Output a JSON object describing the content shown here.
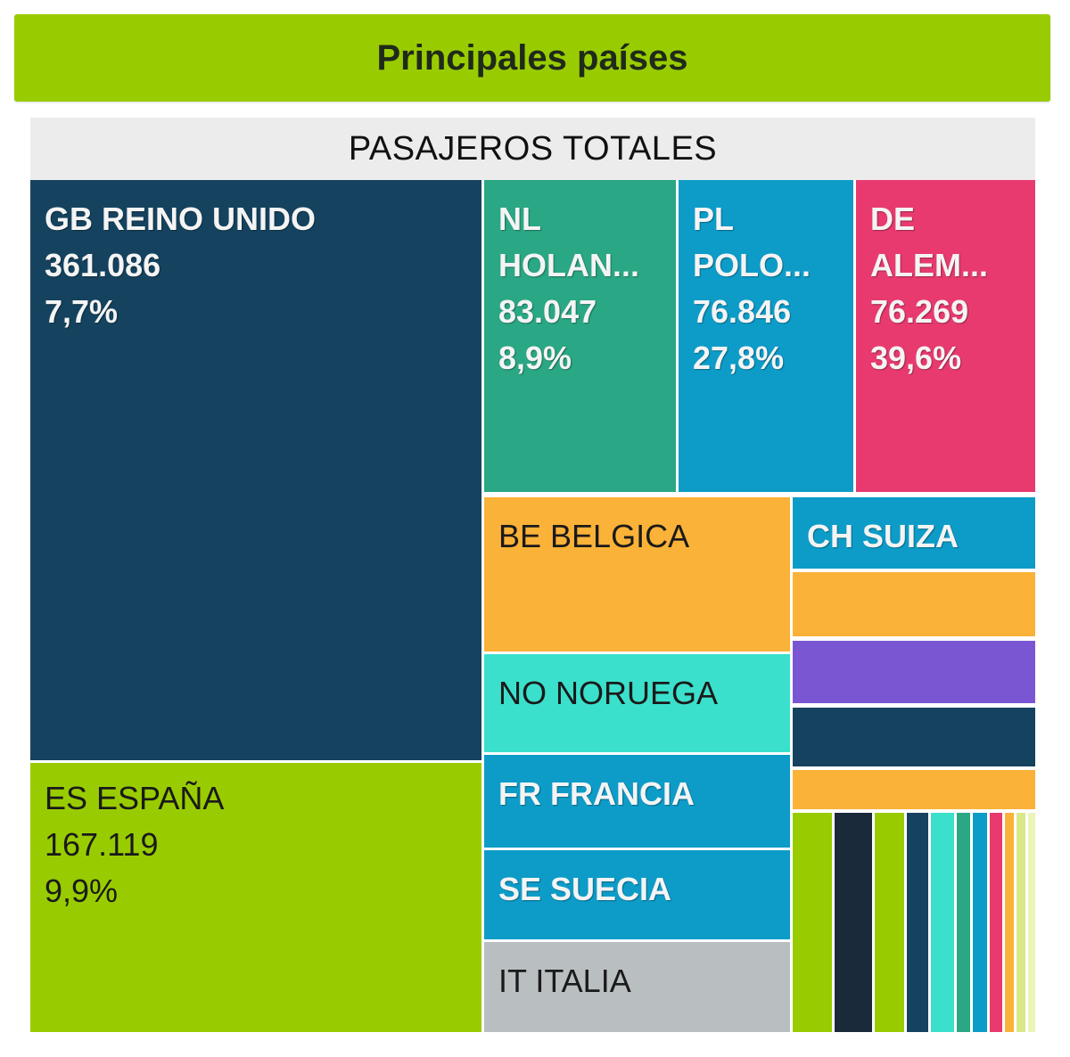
{
  "header": {
    "title": "Principales países"
  },
  "chart_data": {
    "type": "treemap",
    "title": "PASAJEROS TOTALES",
    "colors": {
      "dark_blue": "#15435f",
      "lime": "#99cc00",
      "teal": "#2aa784",
      "blue": "#0d9cc8",
      "pink": "#e83a6e",
      "orange": "#fbb238",
      "turquoise": "#3be0cc",
      "gray": "#b9bec1",
      "purple": "#7b56d3",
      "navy": "#1a2a3a"
    },
    "items": [
      {
        "code": "GB",
        "name": "REINO UNIDO",
        "lines": [
          "GB REINO UNIDO"
        ],
        "value": 361086,
        "value_label": "361.086",
        "pct_label": "7,7%",
        "color": "#15435f",
        "text": "light"
      },
      {
        "code": "ES",
        "name": "ESPAÑA",
        "lines": [
          "ES ESPAÑA"
        ],
        "value": 167119,
        "value_label": "167.119",
        "pct_label": "9,9%",
        "color": "#99cc00",
        "text": "dark"
      },
      {
        "code": "NL",
        "name": "HOLANDA",
        "lines": [
          "NL",
          "HOLAN..."
        ],
        "value": 83047,
        "value_label": "83.047",
        "pct_label": "8,9%",
        "color": "#2aa784",
        "text": "light"
      },
      {
        "code": "PL",
        "name": "POLONIA",
        "lines": [
          "PL",
          "POLO..."
        ],
        "value": 76846,
        "value_label": "76.846",
        "pct_label": "27,8%",
        "color": "#0d9cc8",
        "text": "light"
      },
      {
        "code": "DE",
        "name": "ALEMANIA",
        "lines": [
          "DE",
          "ALEM..."
        ],
        "value": 76269,
        "value_label": "76.269",
        "pct_label": "39,6%",
        "color": "#e83a6e",
        "text": "light"
      },
      {
        "code": "BE",
        "name": "BELGICA",
        "lines": [
          "BE BELGICA"
        ],
        "color": "#fbb238",
        "text": "dark"
      },
      {
        "code": "NO",
        "name": "NORUEGA",
        "lines": [
          "NO NORUEGA"
        ],
        "color": "#3be0cc",
        "text": "dark"
      },
      {
        "code": "FR",
        "name": "FRANCIA",
        "lines": [
          "FR FRANCIA"
        ],
        "color": "#0d9cc8",
        "text": "light"
      },
      {
        "code": "SE",
        "name": "SUECIA",
        "lines": [
          "SE SUECIA"
        ],
        "color": "#0d9cc8",
        "text": "light"
      },
      {
        "code": "IT",
        "name": "ITALIA",
        "lines": [
          "IT ITALIA"
        ],
        "color": "#b9bec1",
        "text": "dark"
      },
      {
        "code": "CH",
        "name": "SUIZA",
        "lines": [
          "CH SUIZA"
        ],
        "color": "#0d9cc8",
        "text": "light"
      }
    ],
    "unlabeled_tiles": [
      {
        "color": "#fbb238"
      },
      {
        "color": "#7b56d3"
      },
      {
        "color": "#15435f"
      },
      {
        "color": "#fbb238"
      },
      {
        "color": "#99cc00"
      },
      {
        "color": "#1a2a3a"
      },
      {
        "color": "#99cc00"
      },
      {
        "color": "#15435f"
      },
      {
        "color": "#3be0cc"
      },
      {
        "color": "#2aa784"
      },
      {
        "color": "#0d9cc8"
      },
      {
        "color": "#e83a6e"
      },
      {
        "color": "#fbb238"
      },
      {
        "color": "#d9e98a"
      },
      {
        "color": "#ecf3b8"
      }
    ]
  }
}
